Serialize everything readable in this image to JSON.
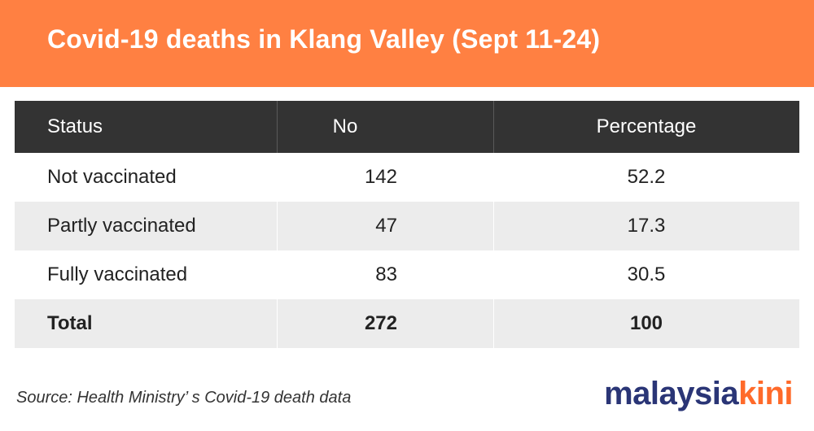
{
  "header": {
    "title": "Covid-19 deaths in Klang Valley (Sept 11-24)"
  },
  "chart_data": {
    "type": "table",
    "title": "Covid-19 deaths in Klang Valley (Sept 11-24)",
    "columns": [
      "Status",
      "No",
      "Percentage"
    ],
    "rows": [
      [
        "Not vaccinated",
        "142",
        "52.2"
      ],
      [
        "Partly vaccinated",
        "47",
        "17.3"
      ],
      [
        "Fully vaccinated",
        "83",
        "30.5"
      ],
      [
        "Total",
        "272",
        "100"
      ]
    ]
  },
  "footer": {
    "source": "Source: Health Ministry’ s Covid-19 death data",
    "logo_part1": "malaysia",
    "logo_part2": "kini"
  },
  "colors": {
    "banner": "#ff8042",
    "header_row": "#333333",
    "alt_row": "#ececec",
    "logo_navy": "#2a3576",
    "logo_orange": "#ff6a2a"
  }
}
